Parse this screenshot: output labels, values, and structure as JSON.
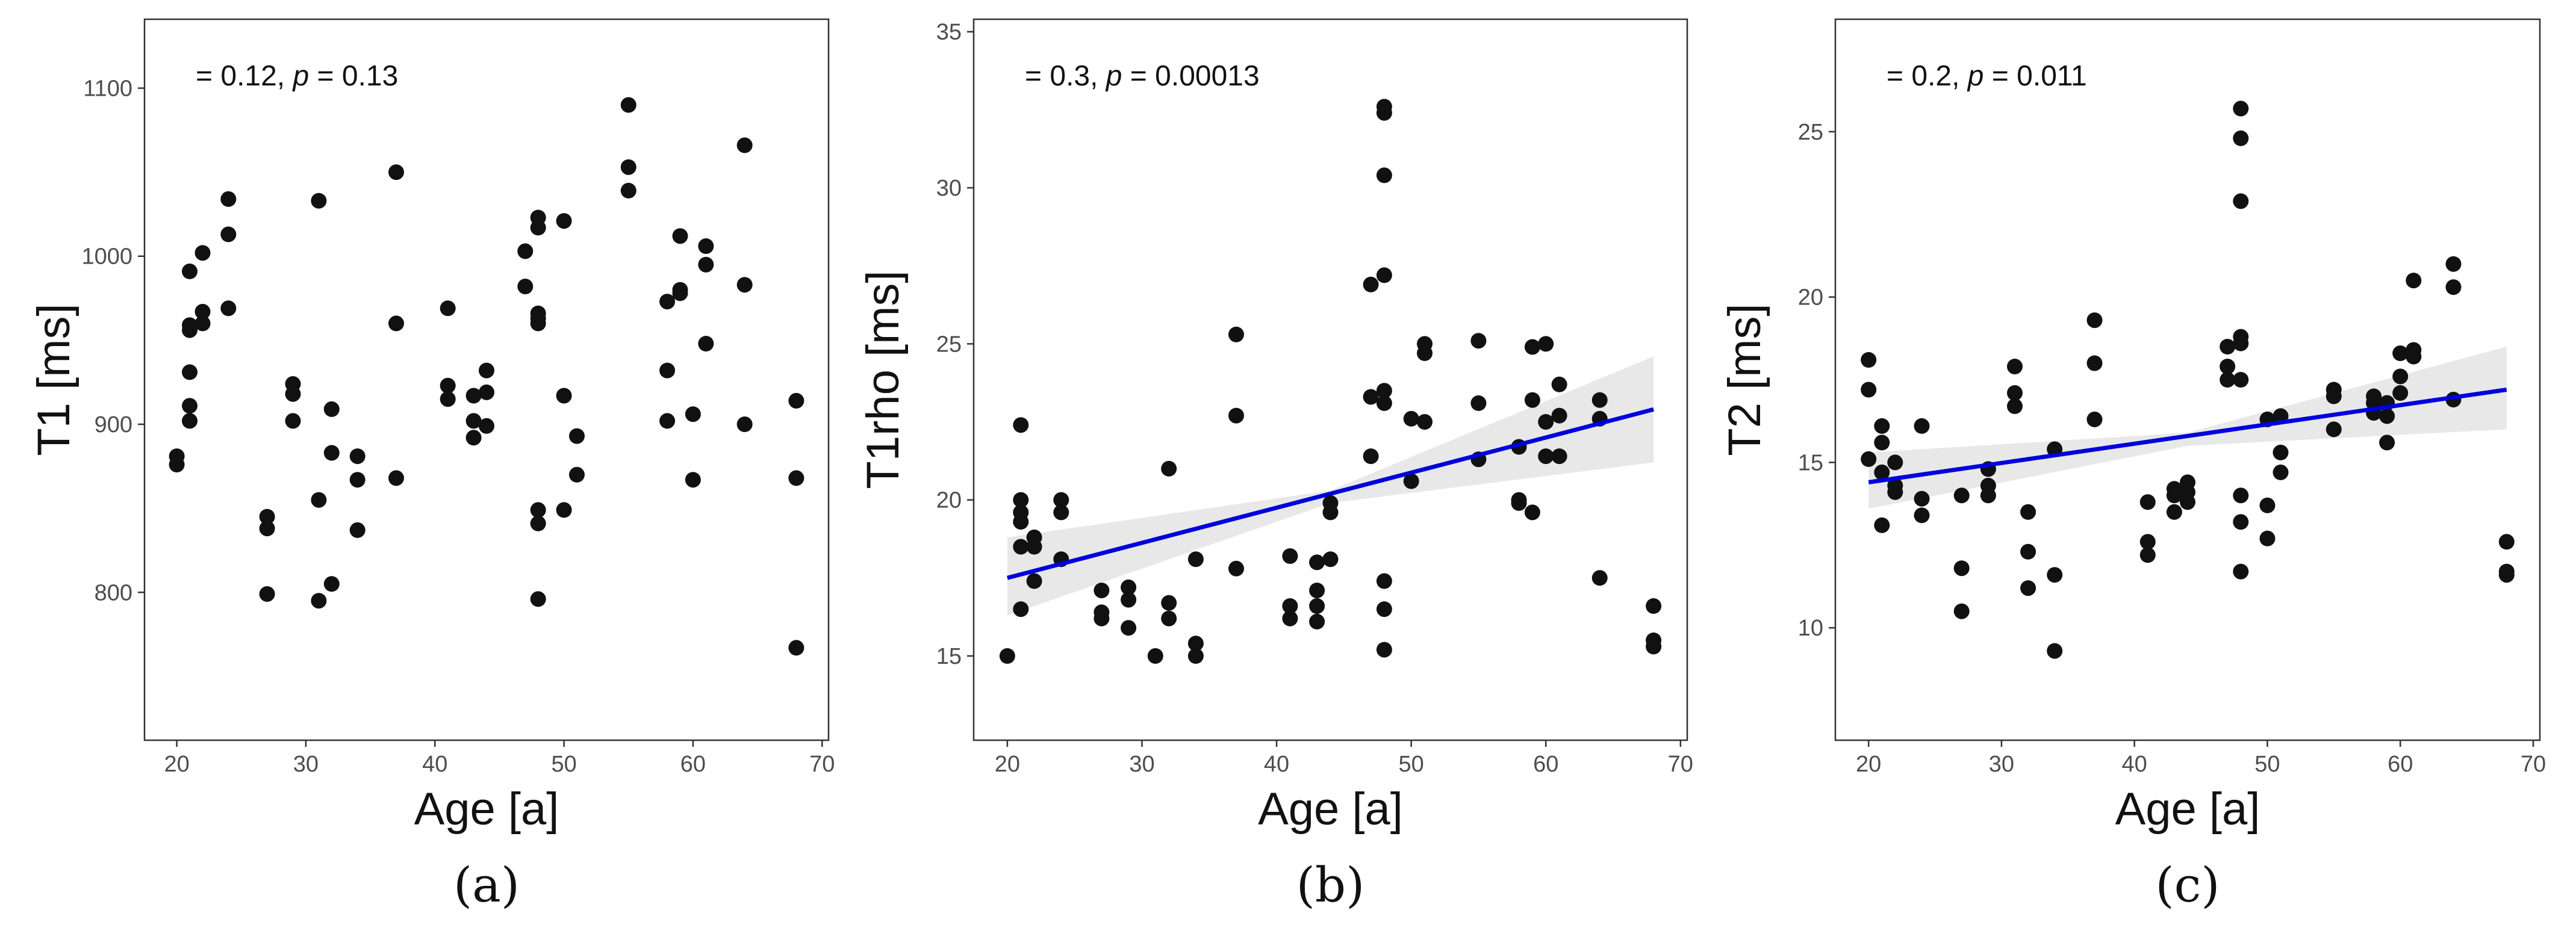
{
  "colors": {
    "point": "#111111",
    "point_inner": "#444444",
    "fit_line": "#0000dd",
    "ci_band": "#e6e6e6",
    "frame": "#333333",
    "tick_text": "#4d4d4d",
    "label_text": "#111111"
  },
  "chart_data": [
    {
      "type": "scatter",
      "caption": "(a)",
      "annotation": {
        "prefix": "= 0.12, ",
        "p_symbol": "p",
        "suffix": " = 0.13"
      },
      "xlabel": "Age [a]",
      "ylabel": "T1 [ms]",
      "xlim": [
        17.5,
        70.5
      ],
      "ylim": [
        712,
        1141
      ],
      "xticks": [
        20,
        30,
        40,
        50,
        60,
        70
      ],
      "yticks": [
        800,
        900,
        1000,
        1100
      ],
      "points": [
        [
          20,
          881
        ],
        [
          20,
          876
        ],
        [
          21,
          991
        ],
        [
          21,
          959
        ],
        [
          21,
          956
        ],
        [
          21,
          931
        ],
        [
          21,
          911
        ],
        [
          21,
          902
        ],
        [
          22,
          1002
        ],
        [
          22,
          967
        ],
        [
          22,
          960
        ],
        [
          24,
          1034
        ],
        [
          24,
          1013
        ],
        [
          24,
          969
        ],
        [
          27,
          845
        ],
        [
          27,
          838
        ],
        [
          27,
          799
        ],
        [
          29,
          924
        ],
        [
          29,
          918
        ],
        [
          29,
          902
        ],
        [
          31,
          1033
        ],
        [
          31,
          855
        ],
        [
          31,
          795
        ],
        [
          32,
          909
        ],
        [
          32,
          883
        ],
        [
          32,
          805
        ],
        [
          34,
          881
        ],
        [
          34,
          867
        ],
        [
          34,
          837
        ],
        [
          37,
          1050
        ],
        [
          37,
          960
        ],
        [
          37,
          868
        ],
        [
          41,
          969
        ],
        [
          41,
          923
        ],
        [
          41,
          915
        ],
        [
          43,
          917
        ],
        [
          43,
          902
        ],
        [
          43,
          892
        ],
        [
          44,
          932
        ],
        [
          44,
          919
        ],
        [
          44,
          899
        ],
        [
          47,
          1003
        ],
        [
          47,
          982
        ],
        [
          48,
          1023
        ],
        [
          48,
          1017
        ],
        [
          48,
          966
        ],
        [
          48,
          963
        ],
        [
          48,
          960
        ],
        [
          48,
          849
        ],
        [
          48,
          841
        ],
        [
          48,
          796
        ],
        [
          50,
          1021
        ],
        [
          50,
          917
        ],
        [
          50,
          849
        ],
        [
          51,
          893
        ],
        [
          51,
          870
        ],
        [
          55,
          1090
        ],
        [
          55,
          1053
        ],
        [
          55,
          1039
        ],
        [
          58,
          973
        ],
        [
          58,
          932
        ],
        [
          58,
          902
        ],
        [
          59,
          1012
        ],
        [
          59,
          980
        ],
        [
          59,
          978
        ],
        [
          60,
          906
        ],
        [
          60,
          867
        ],
        [
          61,
          1006
        ],
        [
          61,
          995
        ],
        [
          61,
          948
        ],
        [
          64,
          1066
        ],
        [
          64,
          983
        ],
        [
          64,
          900
        ],
        [
          68,
          914
        ],
        [
          68,
          868
        ],
        [
          68,
          767
        ]
      ]
    },
    {
      "type": "scatter",
      "caption": "(b)",
      "annotation": {
        "prefix": "= 0.3, ",
        "p_symbol": "p",
        "suffix": " = 0.00013"
      },
      "xlabel": "Age [a]",
      "ylabel": "T1rho [ms]",
      "xlim": [
        17.5,
        70.5
      ],
      "ylim": [
        12.3,
        35.4
      ],
      "xticks": [
        20,
        30,
        40,
        50,
        60,
        70
      ],
      "yticks": [
        15,
        20,
        25,
        30,
        35
      ],
      "fit": {
        "x": [
          20,
          68
        ],
        "y": [
          17.5,
          22.9
        ]
      },
      "ci_band": {
        "x": [
          20,
          44,
          68
        ],
        "lower": [
          16.3,
          19.9,
          21.2
        ],
        "upper": [
          18.8,
          20.3,
          24.6
        ]
      },
      "points": [
        [
          20,
          15.0
        ],
        [
          21,
          22.4
        ],
        [
          21,
          20.0
        ],
        [
          21,
          19.6
        ],
        [
          21,
          19.3
        ],
        [
          21,
          18.5
        ],
        [
          21,
          16.5
        ],
        [
          22,
          18.8
        ],
        [
          22,
          18.5
        ],
        [
          22,
          17.4
        ],
        [
          24,
          20.0
        ],
        [
          24,
          19.6
        ],
        [
          24,
          18.1
        ],
        [
          27,
          17.1
        ],
        [
          27,
          16.4
        ],
        [
          27,
          16.2
        ],
        [
          29,
          17.2
        ],
        [
          29,
          16.8
        ],
        [
          29,
          15.9
        ],
        [
          31,
          15.0
        ],
        [
          32,
          21.0
        ],
        [
          32,
          16.7
        ],
        [
          32,
          16.2
        ],
        [
          34,
          18.1
        ],
        [
          34,
          15.4
        ],
        [
          34,
          15.0
        ],
        [
          37,
          25.3
        ],
        [
          37,
          22.7
        ],
        [
          37,
          17.8
        ],
        [
          41,
          18.2
        ],
        [
          41,
          16.6
        ],
        [
          41,
          16.2
        ],
        [
          43,
          18.0
        ],
        [
          43,
          17.1
        ],
        [
          43,
          16.6
        ],
        [
          43,
          16.1
        ],
        [
          44,
          19.9
        ],
        [
          44,
          19.6
        ],
        [
          44,
          18.1
        ],
        [
          47,
          26.9
        ],
        [
          47,
          23.3
        ],
        [
          47,
          21.4
        ],
        [
          48,
          32.6
        ],
        [
          48,
          32.4
        ],
        [
          48,
          30.4
        ],
        [
          48,
          27.2
        ],
        [
          48,
          23.5
        ],
        [
          48,
          23.1
        ],
        [
          48,
          17.4
        ],
        [
          48,
          16.5
        ],
        [
          48,
          15.2
        ],
        [
          50,
          22.6
        ],
        [
          50,
          20.6
        ],
        [
          51,
          25.0
        ],
        [
          51,
          24.7
        ],
        [
          51,
          22.5
        ],
        [
          55,
          25.1
        ],
        [
          55,
          23.1
        ],
        [
          55,
          21.3
        ],
        [
          58,
          21.7
        ],
        [
          58,
          20.0
        ],
        [
          58,
          19.9
        ],
        [
          59,
          24.9
        ],
        [
          59,
          23.2
        ],
        [
          59,
          19.6
        ],
        [
          60,
          25.0
        ],
        [
          60,
          22.5
        ],
        [
          60,
          21.4
        ],
        [
          61,
          23.7
        ],
        [
          61,
          22.7
        ],
        [
          61,
          21.4
        ],
        [
          64,
          23.2
        ],
        [
          64,
          22.6
        ],
        [
          64,
          17.5
        ],
        [
          68,
          16.6
        ],
        [
          68,
          15.5
        ],
        [
          68,
          15.3
        ]
      ]
    },
    {
      "type": "scatter",
      "caption": "(c)",
      "annotation": {
        "prefix": "= 0.2, ",
        "p_symbol": "p",
        "suffix": " = 0.011"
      },
      "xlabel": "Age [a]",
      "ylabel": "T2 [ms]",
      "xlim": [
        17.5,
        70.5
      ],
      "ylim": [
        6.6,
        28.4
      ],
      "xticks": [
        20,
        30,
        40,
        50,
        60,
        70
      ],
      "yticks": [
        10,
        15,
        20,
        25
      ],
      "fit": {
        "x": [
          20,
          68
        ],
        "y": [
          14.4,
          17.2
        ]
      },
      "ci_band": {
        "x": [
          20,
          44,
          68
        ],
        "lower": [
          13.6,
          15.5,
          16.0
        ],
        "upper": [
          15.3,
          15.9,
          18.5
        ]
      },
      "points": [
        [
          20,
          18.1
        ],
        [
          20,
          17.2
        ],
        [
          20,
          15.1
        ],
        [
          21,
          16.1
        ],
        [
          21,
          15.6
        ],
        [
          21,
          14.7
        ],
        [
          21,
          13.1
        ],
        [
          22,
          15.0
        ],
        [
          22,
          14.3
        ],
        [
          22,
          14.1
        ],
        [
          24,
          16.1
        ],
        [
          24,
          13.9
        ],
        [
          24,
          13.4
        ],
        [
          27,
          14.0
        ],
        [
          27,
          11.8
        ],
        [
          27,
          10.5
        ],
        [
          29,
          14.8
        ],
        [
          29,
          14.3
        ],
        [
          29,
          14.0
        ],
        [
          31,
          17.9
        ],
        [
          31,
          17.1
        ],
        [
          31,
          16.7
        ],
        [
          32,
          13.5
        ],
        [
          32,
          12.3
        ],
        [
          32,
          11.2
        ],
        [
          34,
          15.4
        ],
        [
          34,
          11.6
        ],
        [
          34,
          9.3
        ],
        [
          37,
          19.3
        ],
        [
          37,
          18.0
        ],
        [
          37,
          16.3
        ],
        [
          41,
          13.8
        ],
        [
          41,
          12.6
        ],
        [
          41,
          12.2
        ],
        [
          43,
          14.2
        ],
        [
          43,
          14.0
        ],
        [
          43,
          13.5
        ],
        [
          44,
          14.4
        ],
        [
          44,
          14.1
        ],
        [
          44,
          13.8
        ],
        [
          47,
          18.5
        ],
        [
          47,
          17.9
        ],
        [
          47,
          17.5
        ],
        [
          48,
          25.7
        ],
        [
          48,
          24.8
        ],
        [
          48,
          22.9
        ],
        [
          48,
          18.8
        ],
        [
          48,
          18.6
        ],
        [
          48,
          17.5
        ],
        [
          48,
          14.0
        ],
        [
          48,
          13.2
        ],
        [
          48,
          11.7
        ],
        [
          50,
          16.3
        ],
        [
          50,
          13.7
        ],
        [
          50,
          12.7
        ],
        [
          51,
          16.4
        ],
        [
          51,
          15.3
        ],
        [
          51,
          14.7
        ],
        [
          55,
          17.2
        ],
        [
          55,
          17.0
        ],
        [
          55,
          16.0
        ],
        [
          58,
          17.0
        ],
        [
          58,
          16.8
        ],
        [
          58,
          16.5
        ],
        [
          59,
          16.8
        ],
        [
          59,
          16.4
        ],
        [
          59,
          15.6
        ],
        [
          60,
          18.3
        ],
        [
          60,
          17.6
        ],
        [
          60,
          17.1
        ],
        [
          61,
          20.5
        ],
        [
          61,
          18.4
        ],
        [
          61,
          18.2
        ],
        [
          64,
          21.0
        ],
        [
          64,
          20.3
        ],
        [
          64,
          16.9
        ],
        [
          68,
          12.6
        ],
        [
          68,
          11.7
        ],
        [
          68,
          11.6
        ]
      ]
    }
  ]
}
